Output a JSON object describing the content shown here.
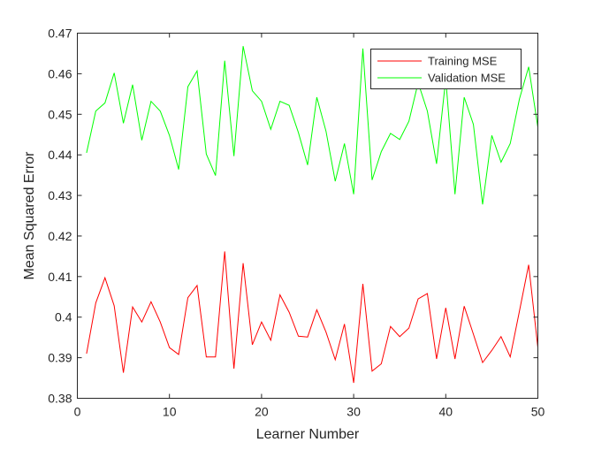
{
  "chart_data": {
    "type": "line",
    "xlabel": "Learner Number",
    "ylabel": "Mean Squared Error",
    "xlim": [
      0,
      50
    ],
    "ylim": [
      0.38,
      0.47
    ],
    "xticks": [
      0,
      10,
      20,
      30,
      40,
      50
    ],
    "xtick_labels": [
      "0",
      "10",
      "20",
      "30",
      "40",
      "50"
    ],
    "yticks": [
      0.38,
      0.39,
      0.4,
      0.41,
      0.42,
      0.43,
      0.44,
      0.45,
      0.46,
      0.47
    ],
    "ytick_labels": [
      "0.38",
      "0.39",
      "0.4",
      "0.41",
      "0.42",
      "0.43",
      "0.44",
      "0.45",
      "0.46",
      "0.47"
    ],
    "grid": false,
    "legend_position": "top-right",
    "x": [
      1,
      2,
      3,
      4,
      5,
      6,
      7,
      8,
      9,
      10,
      11,
      12,
      13,
      14,
      15,
      16,
      17,
      18,
      19,
      20,
      21,
      22,
      23,
      24,
      25,
      26,
      27,
      28,
      29,
      30,
      31,
      32,
      33,
      34,
      35,
      36,
      37,
      38,
      39,
      40,
      41,
      42,
      43,
      44,
      45,
      46,
      47,
      48,
      49,
      50
    ],
    "series": [
      {
        "name": "Training MSE",
        "color": "#ff0000",
        "values": [
          0.391,
          0.4035,
          0.4097,
          0.4028,
          0.3863,
          0.4025,
          0.3988,
          0.4038,
          0.3988,
          0.3925,
          0.3908,
          0.4048,
          0.4078,
          0.3902,
          0.3902,
          0.4162,
          0.3873,
          0.4133,
          0.3932,
          0.3988,
          0.3943,
          0.4055,
          0.4012,
          0.3953,
          0.3951,
          0.4018,
          0.3963,
          0.3895,
          0.3983,
          0.3838,
          0.4082,
          0.3867,
          0.3885,
          0.3977,
          0.3952,
          0.3973,
          0.4045,
          0.4058,
          0.3897,
          0.4023,
          0.3897,
          0.4027,
          0.3958,
          0.3888,
          0.3918,
          0.3952,
          0.3902,
          0.4015,
          0.4129,
          0.3925
        ]
      },
      {
        "name": "Validation MSE",
        "color": "#00ff00",
        "values": [
          0.4405,
          0.4508,
          0.4528,
          0.4602,
          0.4478,
          0.4573,
          0.4436,
          0.4532,
          0.4508,
          0.4448,
          0.4364,
          0.4568,
          0.4607,
          0.4402,
          0.4349,
          0.4632,
          0.4397,
          0.4668,
          0.4558,
          0.4532,
          0.4463,
          0.4532,
          0.4522,
          0.4455,
          0.4375,
          0.4542,
          0.4458,
          0.4335,
          0.4428,
          0.4303,
          0.4662,
          0.4338,
          0.4408,
          0.4453,
          0.4438,
          0.4483,
          0.4578,
          0.4508,
          0.4378,
          0.4588,
          0.4303,
          0.4542,
          0.4475,
          0.4278,
          0.4448,
          0.4382,
          0.4428,
          0.4538,
          0.4617,
          0.4468
        ]
      }
    ]
  }
}
